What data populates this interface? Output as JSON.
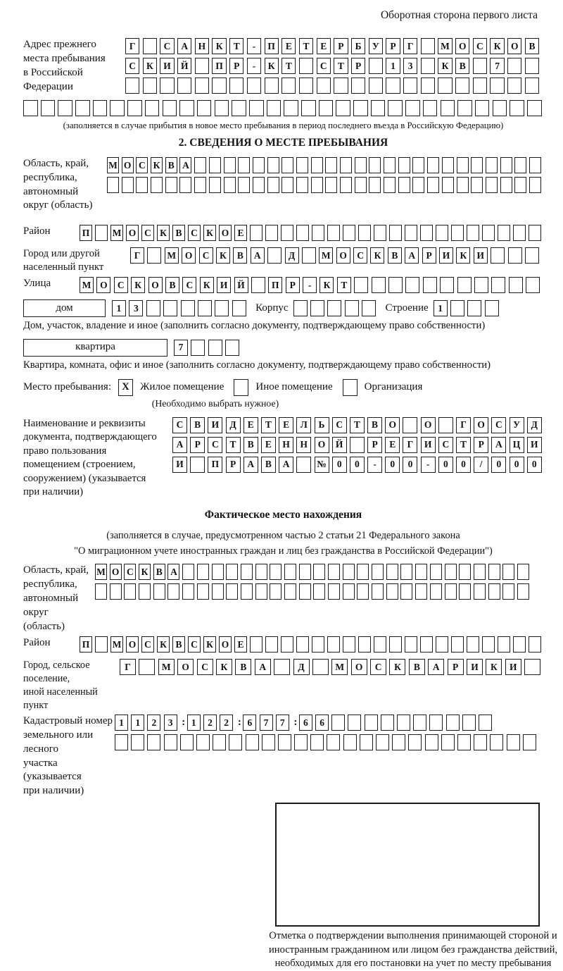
{
  "page": {
    "header_note": "Оборотная сторона первого листа"
  },
  "prev_address": {
    "label": "Адрес прежнего\nместа пребывания\nв Российской\nФедерации",
    "rows": [
      "Г САНКТ-ПЕТЕРБУРГ МОСКОВ",
      "СКИЙ ПР-КТ СТР 13 КВ 7  ",
      "                        "
    ],
    "extra_row": "                              ",
    "caption": "(заполняется в случае прибытия в новое место пребывания в период последнего въезда в Российскую Федерацию)"
  },
  "section2": {
    "title": "2. СВЕДЕНИЯ О МЕСТЕ ПРЕБЫВАНИЯ",
    "region": {
      "label": "Область, край,\nреспублика,\nавтономный\nокруг (область)",
      "rows": [
        "МОСКВА                        ",
        "                              "
      ]
    },
    "district": {
      "label": "Район",
      "row": "П МОСКВСКОЕ                   "
    },
    "city": {
      "label": "Город или другой\nнаселенный пункт",
      "row": "Г МОСКВА Д МОСКВАРИКИ   "
    },
    "street": {
      "label": "Улица",
      "row": "МОСКОВСКИЙ ПР-КТ           "
    },
    "house": {
      "label": "дом",
      "cells": "13      ",
      "korpus_label": "Корпус",
      "korpus_cells": "     ",
      "stroenie_label": "Строение",
      "stroenie_cells": "1   "
    },
    "house_caption": "Дом, участок, владение и иное (заполнить согласно документу, подтверждающему право собственности)",
    "apartment": {
      "label": "квартира",
      "cells": "7   "
    },
    "apartment_caption": "Квартира, комната, офис и иное (заполнить согласно документу, подтверждающему право собственности)",
    "stay_type": {
      "label": "Место пребывания:",
      "options": [
        {
          "label": "Жилое помещение",
          "mark": "X"
        },
        {
          "label": "Иное помещение",
          "mark": ""
        },
        {
          "label": "Организация",
          "mark": ""
        }
      ],
      "note": "(Необходимо выбрать нужное)"
    },
    "document": {
      "label": "Наименование и реквизиты\nдокумента, подтверждающего\nправо пользования\nпомещением (строением,\nсооружением) (указывается\nпри наличии)",
      "rows": [
        "СВИДЕТЕЛЬСТВО О ГОСУД",
        "АРСТВЕННОЙ РЕГИСТРАЦИ",
        "И ПРАВА №00-00-00/000"
      ]
    }
  },
  "actual_location": {
    "title": "Фактическое место нахождения",
    "caption_line1": "(заполняется в случае, предусмотренном частью 2 статьи 21 Федерального закона",
    "caption_line2": "\"О миграционном учете иностранных граждан и лиц без гражданства в Российской Федерации\")",
    "region": {
      "label": "Область, край,\nреспублика,\nавтономный округ\n(область)",
      "rows": [
        "МОСКВА                        ",
        "                              "
      ]
    },
    "district": {
      "label": "Район",
      "row": "П МОСКВСКОЕ                   "
    },
    "city": {
      "label": "Город, сельское поселение,\nиной населенный пункт",
      "row": "Г МОСКВА Д МОСКВАРИКИ "
    },
    "cadastral": {
      "label": "Кадастровый номер\nземельного или лесного\nучастка (указывается\nпри наличии)",
      "row1": "1123:122:677:66          ",
      "row2": "                          "
    }
  },
  "stamp": {
    "caption": "Отметка о подтверждении выполнения принимающей стороной и иностранным гражданином или лицом без гражданства действий, необходимых для его постановки на учет по месту пребывания"
  }
}
